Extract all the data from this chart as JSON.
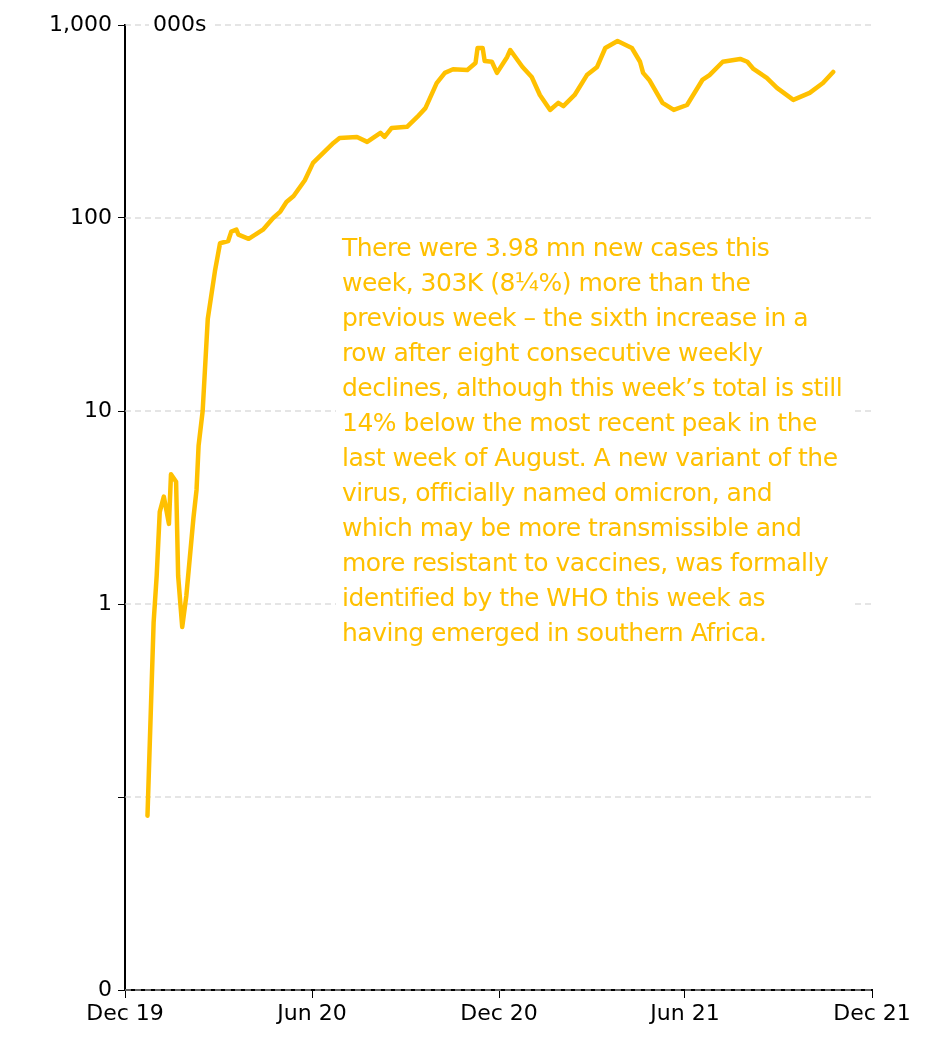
{
  "chart_data": {
    "type": "line",
    "ylabel": "000s",
    "log": "y",
    "grid": "y",
    "marker": "none",
    "line_style": "solid",
    "ylim": [
      0.01,
      1000
    ],
    "yticks": [
      {
        "value": 0.01,
        "label": "0"
      },
      {
        "value": 0.1,
        "label": null
      },
      1,
      10,
      100,
      {
        "value": 1000,
        "label": "1,000"
      }
    ],
    "xlim": [
      "2019-12-01",
      "2021-12-01"
    ],
    "xticks": [
      {
        "value": "2019-12-01",
        "label": "Dec 19"
      },
      {
        "value": "2020-06-01",
        "label": "Jun 20"
      },
      {
        "value": "2020-12-01",
        "label": "Dec 20"
      },
      {
        "value": "2021-06-01",
        "label": "Jun 21"
      },
      {
        "value": "2021-12-01",
        "label": "Dec 21"
      }
    ],
    "x": [
      "2019-12-23",
      "2019-12-29",
      "2020-01-01",
      "2020-01-04",
      "2020-01-08",
      "2020-01-13",
      "2020-01-15",
      "2020-01-20",
      "2020-01-22",
      "2020-01-26",
      "2020-01-30",
      "2020-02-06",
      "2020-02-09",
      "2020-02-11",
      "2020-02-15",
      "2020-02-20",
      "2020-02-27",
      "2020-03-03",
      "2020-03-11",
      "2020-03-14",
      "2020-03-19",
      "2020-03-21",
      "2020-03-31",
      "2020-04-08",
      "2020-04-14",
      "2020-04-24",
      "2020-05-01",
      "2020-05-07",
      "2020-05-14",
      "2020-05-25",
      "2020-06-02",
      "2020-06-22",
      "2020-06-28",
      "2020-07-15",
      "2020-07-25",
      "2020-08-07",
      "2020-08-11",
      "2020-08-18",
      "2020-09-02",
      "2020-09-12",
      "2020-09-20",
      "2020-10-01",
      "2020-10-09",
      "2020-10-17",
      "2020-10-31",
      "2020-11-08",
      "2020-11-10",
      "2020-11-15",
      "2020-11-17",
      "2020-11-24",
      "2020-11-29",
      "2020-12-09",
      "2020-12-12",
      "2020-12-24",
      "2021-01-02",
      "2021-01-10",
      "2021-01-20",
      "2021-01-28",
      "2021-02-02",
      "2021-02-13",
      "2021-02-25",
      "2021-03-07",
      "2021-03-15",
      "2021-03-27",
      "2021-04-10",
      "2021-04-18",
      "2021-04-21",
      "2021-04-27",
      "2021-05-10",
      "2021-05-21",
      "2021-06-03",
      "2021-06-18",
      "2021-06-25",
      "2021-07-08",
      "2021-07-25",
      "2021-08-01",
      "2021-08-07",
      "2021-08-20",
      "2021-08-30",
      "2021-09-15",
      "2021-10-01",
      "2021-10-14",
      "2021-10-24"
    ],
    "series": [
      {
        "color": "#ffc000",
        "values": [
          0.08,
          0.8,
          1.4,
          3.0,
          3.6,
          2.6,
          4.7,
          4.3,
          1.4,
          0.76,
          1.1,
          2.8,
          3.9,
          6.6,
          10,
          30,
          53,
          74,
          76,
          85,
          87,
          82,
          78,
          83,
          87,
          100,
          108,
          121,
          130,
          157,
          193,
          245,
          260,
          263,
          248,
          276,
          263,
          293,
          297,
          334,
          371,
          500,
          565,
          590,
          585,
          636,
          760,
          760,
          650,
          645,
          565,
          683,
          742,
          606,
          538,
          434,
          363,
          395,
          380,
          434,
          550,
          606,
          760,
          826,
          760,
          645,
          565,
          519,
          395,
          363,
          385,
          519,
          550,
          645,
          667,
          645,
          592,
          532,
          472,
          409,
          445,
          501,
          571
        ]
      }
    ],
    "annotations": [
      "There were 3.98 mn new cases this week, 303K (8¼%) more than the previous week – the sixth increase in a row after eight consecutive weekly declines, although this week’s total is still 14% below the most recent peak in the last week of August. A new variant of the virus, officially named omicron, and which may be more transmissible and more resistant to vaccines, was formally identified by the WHO this week as having emerged in southern Africa."
    ]
  }
}
